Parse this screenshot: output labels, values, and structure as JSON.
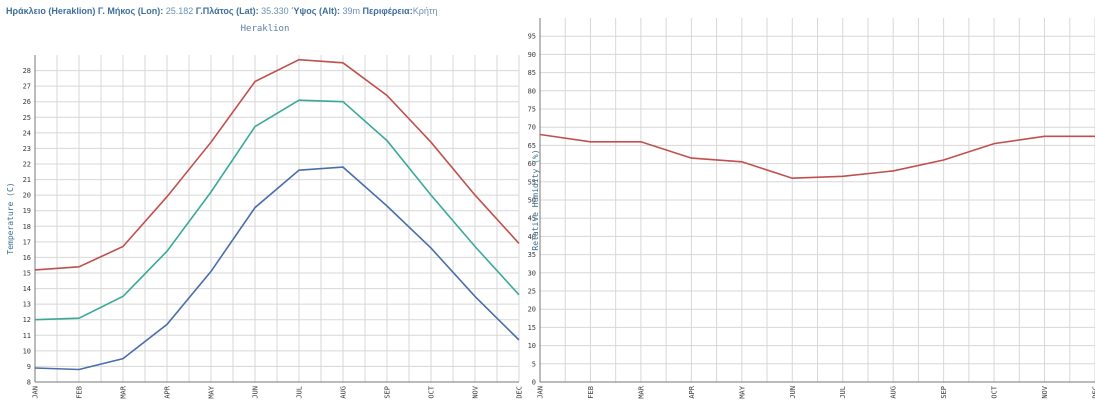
{
  "header": {
    "place_label": "Ηράκλειο (Heraklion)",
    "lon_label": "Γ. Μήκος (Lon):",
    "lon_value": "25.182",
    "lat_label": "Γ.Πλάτος (Lat):",
    "lat_value": "35.330",
    "alt_label": "Ύψος (Alt):",
    "alt_value": "39m",
    "region_label": "Περιφέρεια:",
    "region_value": "Κρήτη"
  },
  "chart_data": [
    {
      "type": "line",
      "title": "Heraklion",
      "xlabel": "",
      "ylabel": "Temperature (C)",
      "categories": [
        "JAN",
        "FEB",
        "MAR",
        "APR",
        "MAY",
        "JUN",
        "JUL",
        "AUG",
        "SEP",
        "OCT",
        "NOV",
        "DEC"
      ],
      "ylim": [
        8,
        29
      ],
      "yticks": [
        8,
        9,
        10,
        11,
        12,
        13,
        14,
        15,
        16,
        17,
        18,
        19,
        20,
        21,
        22,
        23,
        24,
        25,
        26,
        27,
        28
      ],
      "grid": true,
      "series": [
        {
          "color": "#c0504d",
          "values": [
            15.2,
            15.4,
            16.7,
            19.9,
            23.4,
            27.3,
            28.7,
            28.5,
            26.4,
            23.4,
            20.0,
            16.9
          ]
        },
        {
          "color": "#3aa99a",
          "values": [
            12.0,
            12.1,
            13.5,
            16.4,
            20.2,
            24.4,
            26.1,
            26.0,
            23.5,
            20.0,
            16.7,
            13.6
          ]
        },
        {
          "color": "#4a6ea8",
          "values": [
            8.9,
            8.8,
            9.5,
            11.7,
            15.1,
            19.2,
            21.6,
            21.8,
            19.3,
            16.6,
            13.5,
            10.7
          ]
        }
      ]
    },
    {
      "type": "line",
      "title": "",
      "xlabel": "",
      "ylabel": "Relative Humidity (%)",
      "categories": [
        "JAN",
        "FEB",
        "MAR",
        "APR",
        "MAY",
        "JUN",
        "JUL",
        "AUG",
        "SEP",
        "OCT",
        "NOV",
        "DEC"
      ],
      "ylim": [
        0,
        100
      ],
      "yticks": [
        0,
        5,
        10,
        15,
        20,
        25,
        30,
        35,
        40,
        45,
        50,
        55,
        60,
        65,
        70,
        75,
        80,
        85,
        90,
        95
      ],
      "grid": true,
      "series": [
        {
          "color": "#c0504d",
          "values": [
            68,
            66,
            66,
            61.5,
            60.5,
            56,
            56.5,
            58,
            61,
            65.5,
            67.5,
            67.5
          ]
        }
      ]
    }
  ]
}
